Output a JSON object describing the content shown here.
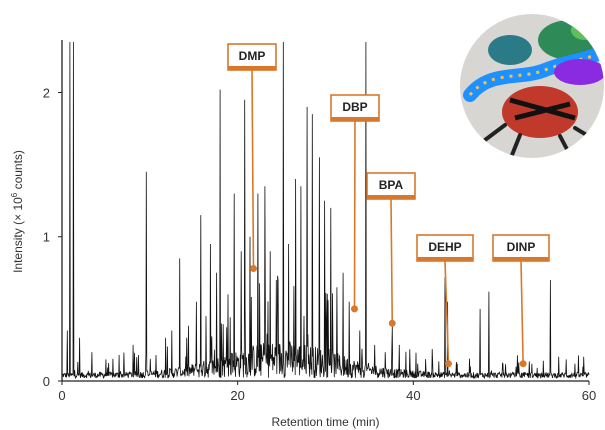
{
  "chart_data": {
    "type": "line",
    "xlabel": "Retention time (min)",
    "ylabel_main": "Intensity (× 10",
    "ylabel_sup": "6",
    "ylabel_end": " counts)",
    "xlim": [
      0,
      60
    ],
    "ylim": [
      0,
      2.35
    ],
    "x_ticks": [
      0,
      20,
      40,
      60
    ],
    "y_ticks": [
      0,
      1,
      2
    ],
    "grid": false,
    "line_color": "#111111",
    "accent_color": "#d9782a",
    "peaks": [
      [
        0.9,
        2.4
      ],
      [
        1.3,
        2.4
      ],
      [
        0.6,
        0.35
      ],
      [
        2.0,
        0.3
      ],
      [
        3.4,
        0.2
      ],
      [
        5.0,
        0.15
      ],
      [
        6.5,
        0.18
      ],
      [
        8.1,
        0.25
      ],
      [
        8.7,
        0.18
      ],
      [
        9.6,
        1.45
      ],
      [
        10.7,
        0.18
      ],
      [
        11.8,
        0.3
      ],
      [
        12.5,
        0.35
      ],
      [
        13.4,
        0.85
      ],
      [
        14.2,
        0.3
      ],
      [
        15.3,
        0.55
      ],
      [
        15.8,
        1.15
      ],
      [
        16.4,
        0.45
      ],
      [
        16.9,
        0.95
      ],
      [
        17.6,
        0.75
      ],
      [
        18.0,
        2.02
      ],
      [
        18.9,
        0.6
      ],
      [
        19.6,
        1.3
      ],
      [
        20.4,
        0.9
      ],
      [
        20.8,
        1.95
      ],
      [
        21.4,
        1.0
      ],
      [
        22.3,
        1.3
      ],
      [
        23.1,
        1.35
      ],
      [
        23.7,
        0.9
      ],
      [
        24.4,
        0.7
      ],
      [
        25.2,
        2.35
      ],
      [
        25.8,
        0.95
      ],
      [
        26.6,
        1.4
      ],
      [
        27.2,
        1.35
      ],
      [
        27.9,
        1.9
      ],
      [
        28.5,
        1.85
      ],
      [
        29.3,
        1.55
      ],
      [
        29.9,
        1.25
      ],
      [
        30.6,
        1.2
      ],
      [
        31.3,
        0.65
      ],
      [
        32.0,
        0.75
      ],
      [
        32.7,
        0.55
      ],
      [
        33.9,
        0.35
      ],
      [
        34.6,
        2.35
      ],
      [
        35.6,
        0.25
      ],
      [
        36.8,
        0.2
      ],
      [
        37.6,
        0.38
      ],
      [
        38.4,
        0.25
      ],
      [
        40.5,
        0.12
      ],
      [
        42.2,
        0.12
      ],
      [
        43.6,
        0.72
      ],
      [
        43.9,
        0.55
      ],
      [
        45.0,
        0.12
      ],
      [
        46.5,
        0.1
      ],
      [
        47.6,
        0.5
      ],
      [
        48.6,
        0.62
      ],
      [
        50.2,
        0.12
      ],
      [
        51.7,
        0.1
      ],
      [
        53.5,
        0.12
      ],
      [
        55.6,
        0.7
      ],
      [
        57.4,
        0.15
      ],
      [
        58.4,
        0.12
      ],
      [
        59.3,
        0.1
      ]
    ],
    "annotations": [
      {
        "label": "DMP",
        "x": 21.8,
        "y": 0.78
      },
      {
        "label": "DBP",
        "x": 33.3,
        "y": 0.5
      },
      {
        "label": "BPA",
        "x": 37.6,
        "y": 0.4
      },
      {
        "label": "DEHP",
        "x": 44.0,
        "y": 0.12
      },
      {
        "label": "DINP",
        "x": 52.5,
        "y": 0.12
      }
    ]
  },
  "photo": {
    "icon": "toy-frogs-photo",
    "colors": [
      "#2e8b57",
      "#8a2be2",
      "#1e90ff",
      "#c0392b",
      "#111111",
      "#f2c14e"
    ]
  }
}
